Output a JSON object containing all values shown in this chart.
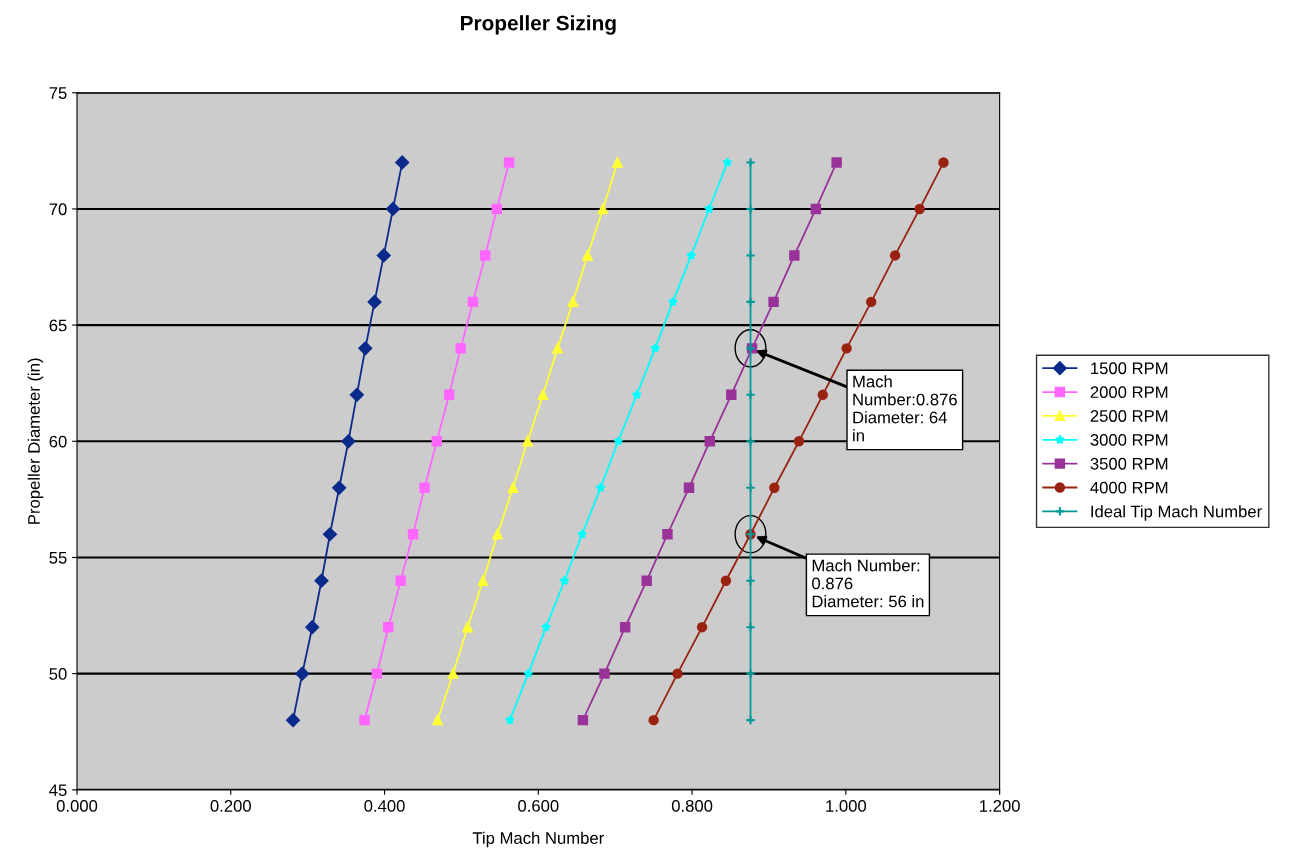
{
  "chart_data": {
    "type": "line",
    "title": "Propeller Sizing",
    "xlabel": "Tip Mach Number",
    "ylabel": "Propeller Diameter (in)",
    "xlim": [
      0,
      1.2
    ],
    "xticks": [
      {
        "value": 0,
        "label": "0.000"
      },
      {
        "value": 0.2,
        "label": "0.200"
      },
      {
        "value": 0.4,
        "label": "0.400"
      },
      {
        "value": 0.6,
        "label": "0.600"
      },
      {
        "value": 0.8,
        "label": "0.800"
      },
      {
        "value": 1.0,
        "label": "1.000"
      },
      {
        "value": 1.2,
        "label": "1.200"
      }
    ],
    "ylim": [
      45,
      75
    ],
    "yticks": [
      45,
      50,
      55,
      60,
      65,
      70,
      75
    ],
    "grid": "y",
    "legend": "right",
    "series": [
      {
        "name": "1500 RPM",
        "color": "#0a2a8c",
        "marker": "diamond",
        "x": [
          0.281,
          0.293,
          0.306,
          0.318,
          0.329,
          0.341,
          0.353,
          0.364,
          0.375,
          0.387,
          0.399,
          0.411,
          0.423
        ],
        "values": [
          48,
          50,
          52,
          54,
          56,
          58,
          60,
          62,
          64,
          66,
          68,
          70,
          72
        ]
      },
      {
        "name": "2000 RPM",
        "color": "#ff66ff",
        "marker": "square",
        "x": [
          0.374,
          0.39,
          0.405,
          0.421,
          0.437,
          0.452,
          0.468,
          0.484,
          0.499,
          0.515,
          0.531,
          0.546,
          0.562
        ],
        "values": [
          48,
          50,
          52,
          54,
          56,
          58,
          60,
          62,
          64,
          66,
          68,
          70,
          72
        ]
      },
      {
        "name": "2500 RPM",
        "color": "#ffff33",
        "marker": "triangle",
        "x": [
          0.469,
          0.489,
          0.508,
          0.528,
          0.547,
          0.567,
          0.586,
          0.606,
          0.625,
          0.645,
          0.664,
          0.684,
          0.703
        ],
        "values": [
          48,
          50,
          52,
          54,
          56,
          58,
          60,
          62,
          64,
          66,
          68,
          70,
          72
        ]
      },
      {
        "name": "3000 RPM",
        "color": "#00ffff",
        "marker": "star",
        "x": [
          0.563,
          0.587,
          0.61,
          0.634,
          0.657,
          0.681,
          0.704,
          0.728,
          0.752,
          0.775,
          0.799,
          0.822,
          0.846
        ],
        "values": [
          48,
          50,
          52,
          54,
          56,
          58,
          60,
          62,
          64,
          66,
          68,
          70,
          72
        ]
      },
      {
        "name": "3500 RPM",
        "color": "#993399",
        "marker": "square",
        "x": [
          0.658,
          0.686,
          0.713,
          0.741,
          0.768,
          0.796,
          0.823,
          0.851,
          0.878,
          0.906,
          0.933,
          0.961,
          0.988
        ],
        "values": [
          48,
          50,
          52,
          54,
          56,
          58,
          60,
          62,
          64,
          66,
          68,
          70,
          72
        ]
      },
      {
        "name": "4000 RPM",
        "color": "#992211",
        "marker": "circle",
        "x": [
          0.75,
          0.781,
          0.813,
          0.844,
          0.876,
          0.907,
          0.939,
          0.97,
          1.001,
          1.033,
          1.064,
          1.096,
          1.127
        ],
        "values": [
          48,
          50,
          52,
          54,
          56,
          58,
          60,
          62,
          64,
          66,
          68,
          70,
          72
        ]
      },
      {
        "name": "Ideal Tip Mach Number",
        "color": "#009999",
        "marker": "cross",
        "x": [
          0.876,
          0.876,
          0.876,
          0.876,
          0.876,
          0.876,
          0.876,
          0.876,
          0.876,
          0.876,
          0.876,
          0.876,
          0.876
        ],
        "values": [
          48,
          50,
          52,
          54,
          56,
          58,
          60,
          62,
          64,
          66,
          68,
          70,
          72
        ]
      }
    ],
    "annotations": [
      {
        "text": "Mach\nNumber:0.876\nDiameter: 64\nin",
        "x": 0.876,
        "y": 64
      },
      {
        "text": "Mach Number:\n0.876\nDiameter: 56 in",
        "x": 0.876,
        "y": 56
      }
    ]
  }
}
